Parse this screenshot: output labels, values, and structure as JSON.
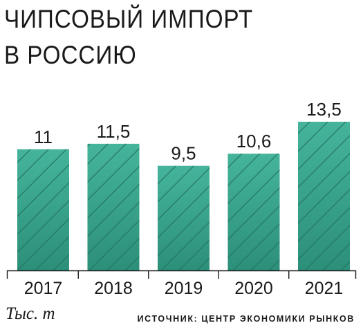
{
  "title_lines": [
    "ЧИПСОВЫЙ ИМПОРТ",
    "В РОССИЮ"
  ],
  "unit_label": "Тыс. т",
  "source": "ИСТОЧНИК: ЦЕНТР ЭКОНОМИКИ РЫНКОВ",
  "colors": {
    "bar_top": "#45b49b",
    "bar_bottom": "#2c8f79",
    "hatch": "#237563",
    "axis": "#1a1a1a",
    "text": "#1a1a1a"
  },
  "chart_data": {
    "type": "bar",
    "title": "ЧИПСОВЫЙ ИМПОРТ В РОССИЮ",
    "categories": [
      "2017",
      "2018",
      "2019",
      "2020",
      "2021"
    ],
    "values": [
      11,
      11.5,
      9.5,
      10.6,
      13.5
    ],
    "value_labels": [
      "11",
      "11,5",
      "9,5",
      "10,6",
      "13,5"
    ],
    "xlabel": "",
    "ylabel": "Тыс. т",
    "ylim": [
      0,
      13.5
    ],
    "grid": false,
    "legend": "none"
  }
}
